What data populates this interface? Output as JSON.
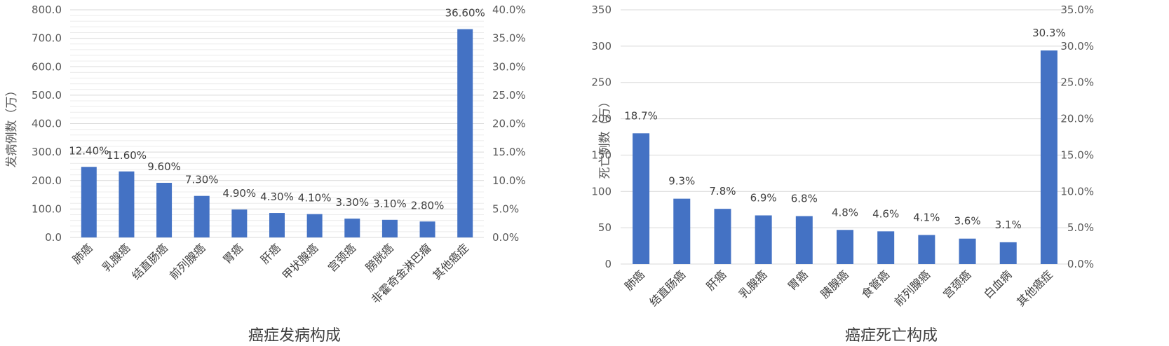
{
  "chart_data": [
    {
      "type": "bar",
      "title": "癌症发病构成",
      "ylabel": "发病例数（万）",
      "ylim": [
        0,
        800
      ],
      "y2lim": [
        0,
        40
      ],
      "yticks": [
        "0.0",
        "100.0",
        "200.0",
        "300.0",
        "400.0",
        "500.0",
        "600.0",
        "700.0",
        "800.0"
      ],
      "y2ticks": [
        "0.0%",
        "5.0%",
        "10.0%",
        "15.0%",
        "20.0%",
        "25.0%",
        "30.0%",
        "35.0%",
        "40.0%"
      ],
      "categories": [
        "肺癌",
        "乳腺癌",
        "结直肠癌",
        "前列腺癌",
        "胃癌",
        "肝癌",
        "甲状腺癌",
        "宫颈癌",
        "膀胱癌",
        "非霍奇金淋巴瘤",
        "其他癌症"
      ],
      "values": [
        248,
        232,
        192,
        146,
        98,
        86,
        82,
        66,
        62,
        56,
        732
      ],
      "labels": [
        "12.40%",
        "11.60%",
        "9.60%",
        "7.30%",
        "4.90%",
        "4.30%",
        "4.10%",
        "3.30%",
        "3.10%",
        "2.80%",
        "36.60%"
      ],
      "color": "#4472c4",
      "grid": true
    },
    {
      "type": "bar",
      "title": "癌症死亡构成",
      "ylabel": "死亡例数（万）",
      "ylim": [
        0,
        350
      ],
      "y2lim": [
        0,
        35
      ],
      "yticks": [
        "0",
        "50",
        "100",
        "150",
        "200",
        "250",
        "300",
        "350"
      ],
      "y2ticks": [
        "0.0%",
        "5.0%",
        "10.0%",
        "15.0%",
        "20.0%",
        "25.0%",
        "30.0%",
        "35.0%"
      ],
      "categories": [
        "肺癌",
        "结直肠癌",
        "肝癌",
        "乳腺癌",
        "胃癌",
        "胰腺癌",
        "食管癌",
        "前列腺癌",
        "宫颈癌",
        "白血病",
        "其他癌症"
      ],
      "values": [
        180,
        90,
        76,
        67,
        66,
        47,
        45,
        40,
        35,
        30,
        294
      ],
      "labels": [
        "18.7%",
        "9.3%",
        "7.8%",
        "6.9%",
        "6.8%",
        "4.8%",
        "4.6%",
        "4.1%",
        "3.6%",
        "3.1%",
        "30.3%"
      ],
      "color": "#4472c4",
      "grid": true
    }
  ]
}
